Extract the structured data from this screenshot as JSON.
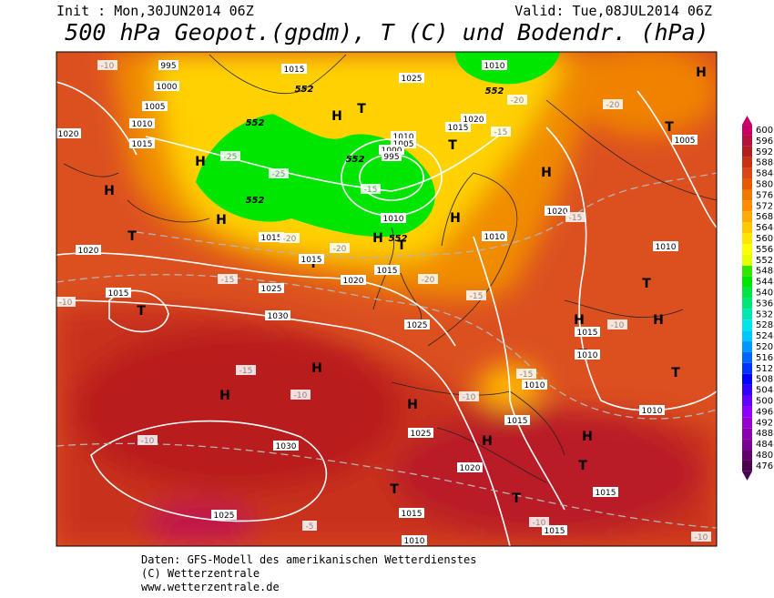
{
  "header": {
    "init": "Init : Mon,30JUN2014 06Z",
    "valid": "Valid: Tue,08JUL2014 06Z",
    "title": "500 hPa Geopot.(gpdm), T (C) und Bodendr. (hPa)"
  },
  "colorbar": {
    "ticks": [
      476,
      480,
      484,
      488,
      492,
      496,
      500,
      504,
      508,
      512,
      516,
      520,
      524,
      528,
      532,
      536,
      540,
      544,
      548,
      552,
      556,
      560,
      564,
      568,
      572,
      576,
      580,
      584,
      588,
      592,
      596,
      600
    ],
    "colors": [
      "#4b0050",
      "#64006e",
      "#7d0096",
      "#8c00b4",
      "#9600d2",
      "#8c00ff",
      "#6400ff",
      "#3200ff",
      "#0000ff",
      "#0032ff",
      "#0064ff",
      "#0096ff",
      "#00c8ff",
      "#00e6e6",
      "#00e6b4",
      "#00e678",
      "#00e646",
      "#00e600",
      "#32e600",
      "#e6ff00",
      "#ffff00",
      "#ffe600",
      "#ffc800",
      "#ffaa00",
      "#ff8c00",
      "#f07800",
      "#e65a00",
      "#dc4614",
      "#c83214",
      "#b41e1e",
      "#b4143c",
      "#c80064"
    ]
  },
  "map": {
    "labels": [
      "H",
      "H",
      "H",
      "H",
      "H",
      "H",
      "H",
      "H",
      "H",
      "H",
      "H",
      "H",
      "H",
      "H",
      "H",
      "T",
      "T",
      "T",
      "T",
      "T",
      "T",
      "T",
      "T",
      "T",
      "T",
      "T",
      "T",
      "T",
      "995",
      "1015",
      "1000",
      "1025",
      "1010",
      "1005",
      "1010",
      "1020",
      "1015",
      "1020",
      "1015",
      "1010",
      "1005",
      "1000",
      "995",
      "1020",
      "1015",
      "1010",
      "1010",
      "1020",
      "1015",
      "1015",
      "1020",
      "1025",
      "1030",
      "1025",
      "1015",
      "1015",
      "1010",
      "1015",
      "1025",
      "1010",
      "1030",
      "1020",
      "1015",
      "1025",
      "1015",
      "1010",
      "1015",
      "1010",
      "1005",
      "1010",
      "-10",
      "-15",
      "-20",
      "-25",
      "-25",
      "-20",
      "-20",
      "-15",
      "-20",
      "-15",
      "-10",
      "-15",
      "-15",
      "-10",
      "-10",
      "-10",
      "-15",
      "-10",
      "-5",
      "-10",
      "-20",
      "-15",
      "-10",
      "552",
      "552",
      "552",
      "552",
      "552",
      "552"
    ]
  },
  "footer": {
    "lines": [
      "Daten: GFS-Modell des amerikanischen Wetterdienstes",
      "(C) Wetterzentrale",
      "www.wetterzentrale.de"
    ]
  }
}
